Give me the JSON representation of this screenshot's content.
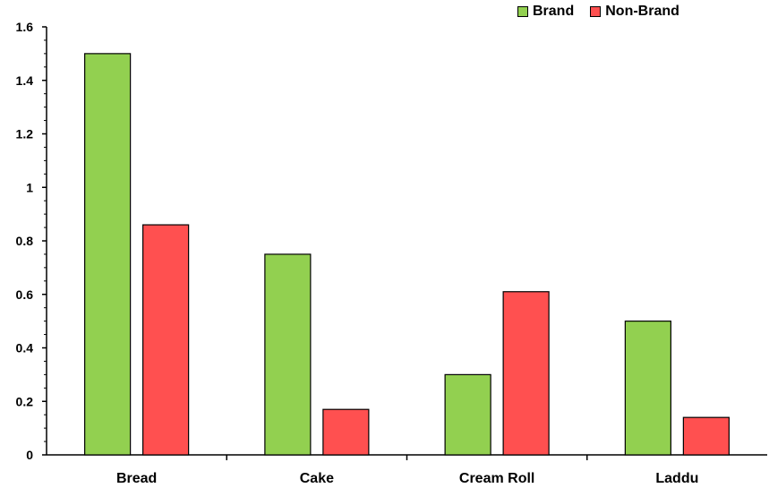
{
  "chart_data": {
    "type": "bar",
    "categories": [
      "Bread",
      "Cake",
      "Cream Roll",
      "Laddu"
    ],
    "series": [
      {
        "name": "Brand",
        "values": [
          1.5,
          0.75,
          0.3,
          0.5
        ],
        "color": "#92D050"
      },
      {
        "name": "Non-Brand",
        "values": [
          0.86,
          0.17,
          0.61,
          0.14
        ],
        "color": "#FF5050"
      }
    ],
    "ylim": [
      0,
      1.6
    ],
    "yticks": [
      0,
      0.2,
      0.4,
      0.6,
      0.8,
      1,
      1.2,
      1.4,
      1.6
    ],
    "ytick_labels": [
      "0",
      "0.2",
      "0.4",
      "0.6",
      "0.8",
      "1",
      "1.2",
      "1.4",
      "1.6"
    ],
    "legend_position": "top-right",
    "grid": false
  }
}
